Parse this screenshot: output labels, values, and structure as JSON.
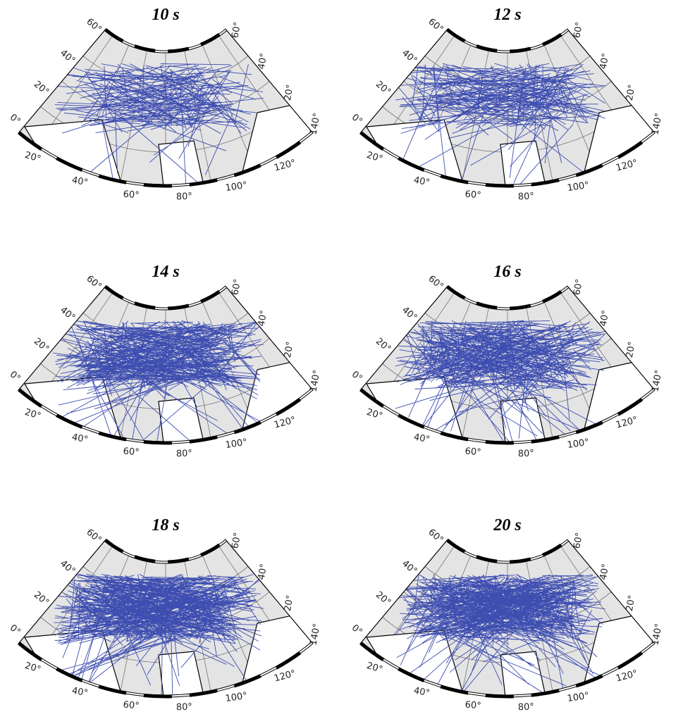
{
  "panels": [
    {
      "title": "10 s",
      "left": [
        "60°",
        "40°",
        "20°",
        "0°"
      ],
      "bottom": [
        "20°",
        "40°",
        "60°",
        "80°",
        "100°",
        "120°"
      ],
      "right": [
        "60°",
        "40°",
        "20°",
        "140°"
      ]
    },
    {
      "title": "12 s",
      "left": [
        "60°",
        "40°",
        "20°",
        "0°"
      ],
      "bottom": [
        "20°",
        "40°",
        "60°",
        "80°",
        "100°",
        "120°"
      ],
      "right": [
        "60°",
        "40°",
        "20°",
        "140°"
      ]
    },
    {
      "title": "14 s",
      "left": [
        "60°",
        "40°",
        "20°",
        "0°"
      ],
      "bottom": [
        "20°",
        "40°",
        "60°",
        "80°",
        "100°",
        "120°"
      ],
      "right": [
        "60°",
        "40°",
        "20°",
        "140°"
      ]
    },
    {
      "title": "16 s",
      "left": [
        "60°",
        "40°",
        "20°",
        "0°"
      ],
      "bottom": [
        "20°",
        "40°",
        "60°",
        "80°",
        "100°",
        "120°"
      ],
      "right": [
        "60°",
        "40°",
        "20°",
        "140°"
      ]
    },
    {
      "title": "18 s",
      "left": [
        "60°",
        "40°",
        "20°",
        "0°"
      ],
      "bottom": [
        "20°",
        "40°",
        "60°",
        "80°",
        "100°",
        "120°"
      ],
      "right": [
        "60°",
        "40°",
        "20°",
        "140°"
      ]
    },
    {
      "title": "20 s",
      "left": [
        "60°",
        "40°",
        "20°",
        "0°"
      ],
      "bottom": [
        "20°",
        "40°",
        "60°",
        "80°",
        "100°",
        "120°"
      ],
      "right": [
        "60°",
        "40°",
        "20°",
        "140°"
      ]
    }
  ]
}
